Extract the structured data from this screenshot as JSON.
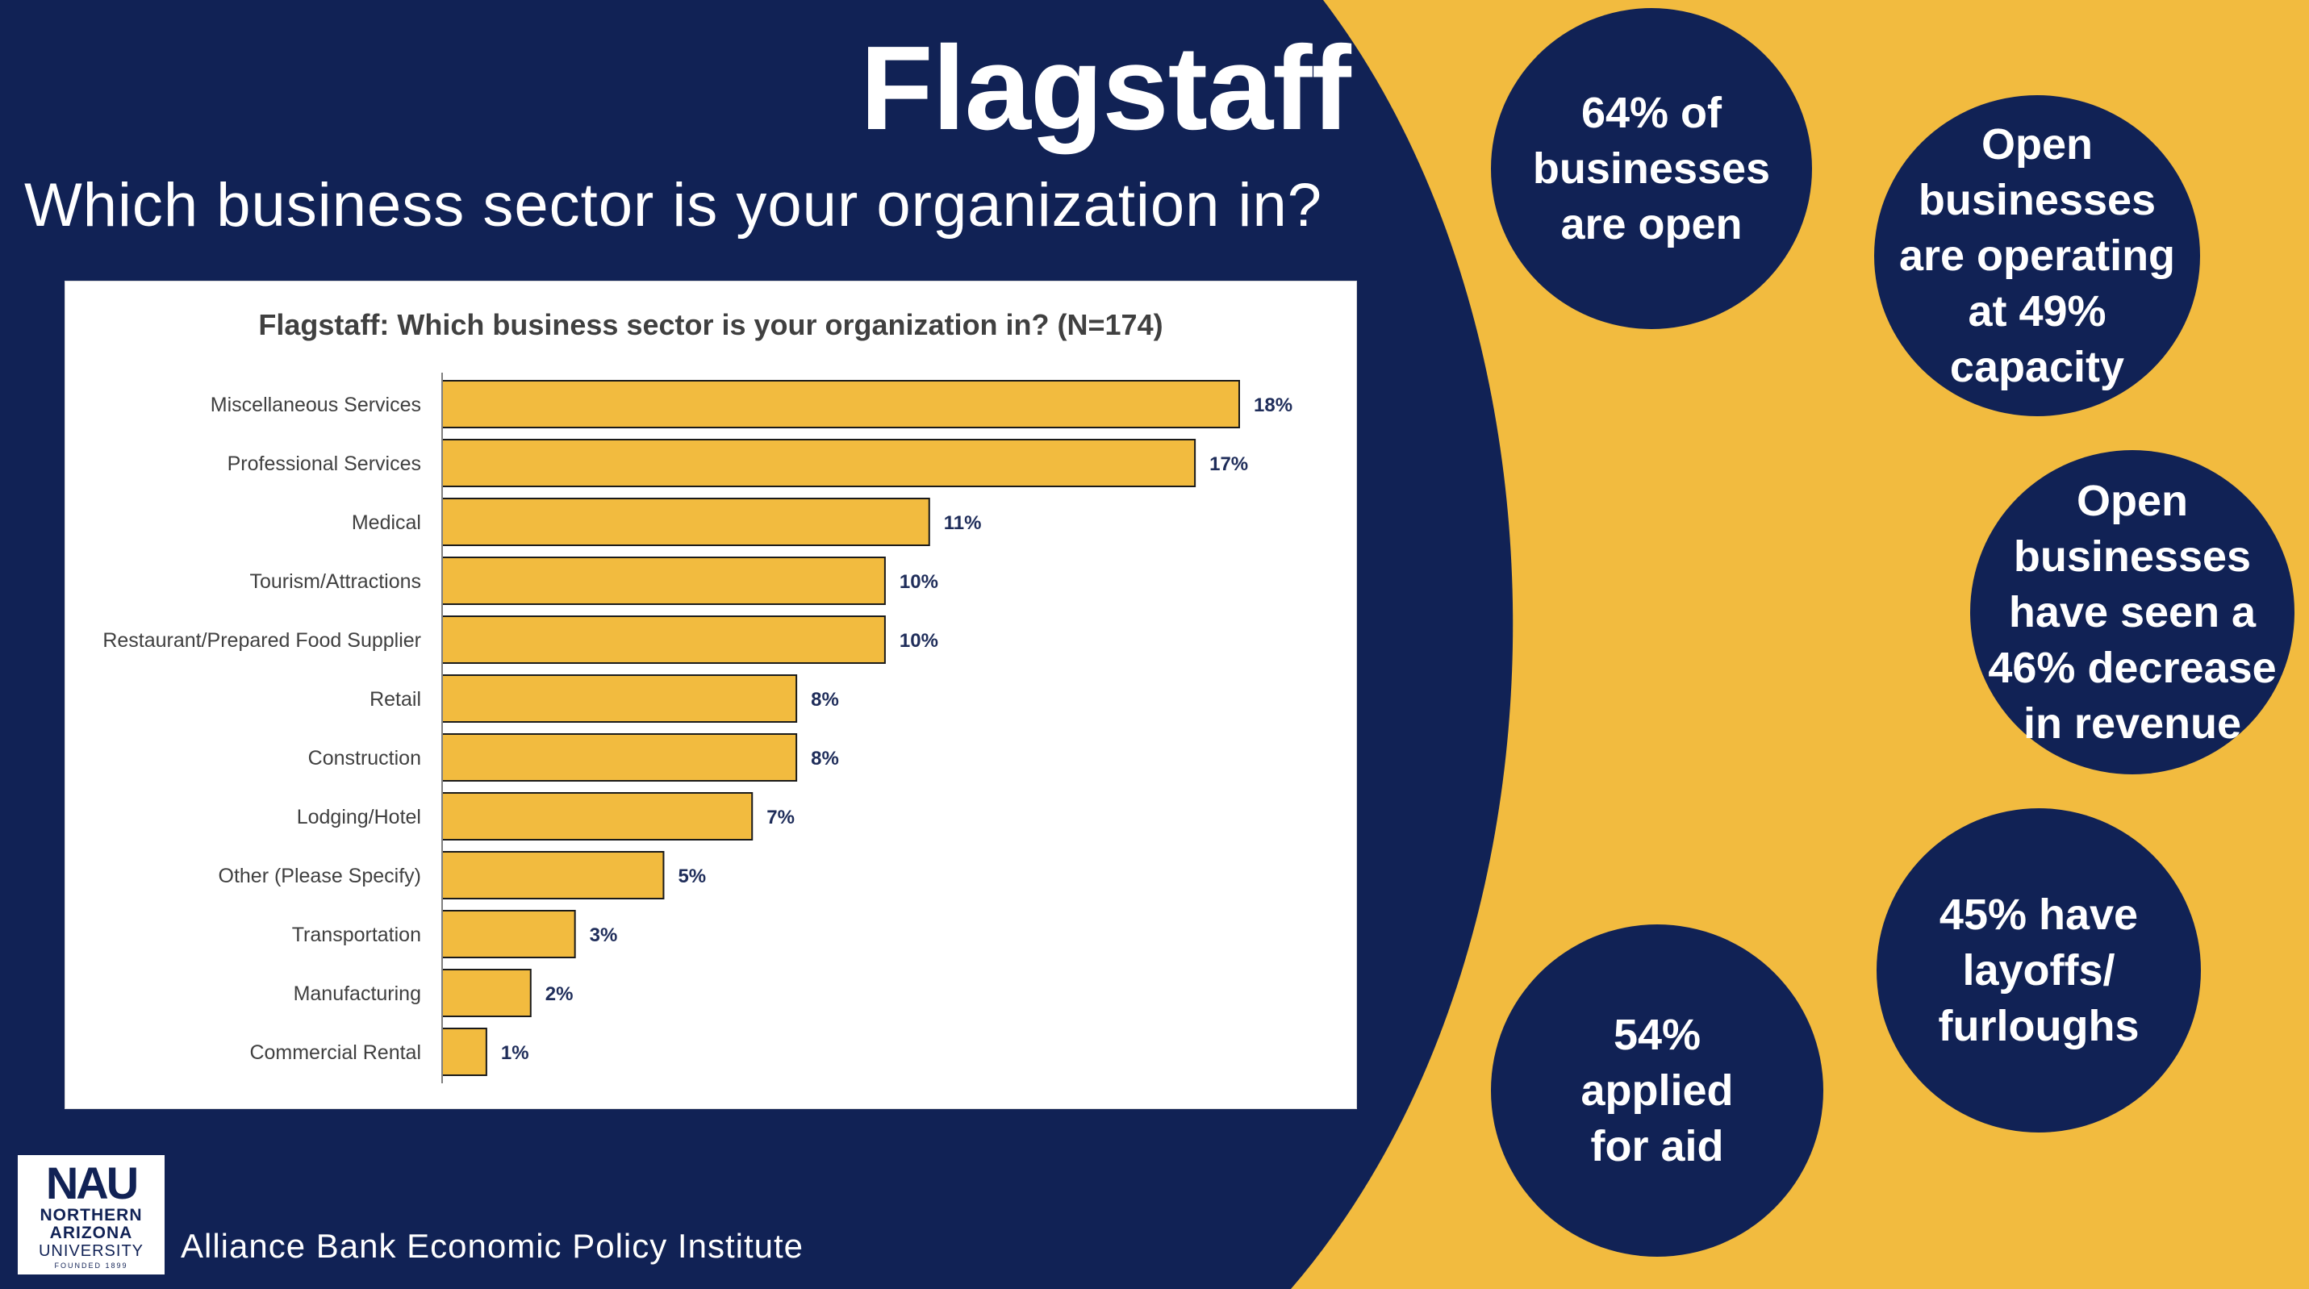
{
  "slide": {
    "title": "Flagstaff",
    "subtitle": "Which business sector is your organization in?",
    "footer": "Alliance Bank Economic Policy Institute",
    "colors": {
      "navy": "#112255",
      "gold": "#f2bb3f",
      "bar": "#f2bb3f",
      "white": "#ffffff"
    }
  },
  "logo": {
    "wordmark": "NAU",
    "line1": "NORTHERN",
    "line2": "ARIZONA",
    "line3": "UNIVERSITY",
    "founded": "FOUNDED 1899"
  },
  "stats": [
    {
      "text": "64% of businesses are open"
    },
    {
      "text": "Open businesses are operating at 49% capacity"
    },
    {
      "text": "Open businesses have seen a 46% decrease in revenue"
    },
    {
      "text": "45% have layoffs/ furloughs"
    },
    {
      "text": "54% applied for aid"
    }
  ],
  "chart_data": {
    "type": "bar",
    "orientation": "horizontal",
    "title": "Flagstaff: Which business sector is your organization in? (N=174)",
    "categories": [
      "Miscellaneous Services",
      "Professional Services",
      "Medical",
      "Tourism/Attractions",
      "Restaurant/Prepared Food Supplier",
      "Retail",
      "Construction",
      "Lodging/Hotel",
      "Other (Please Specify)",
      "Transportation",
      "Manufacturing",
      "Commercial Rental"
    ],
    "values": [
      18,
      17,
      11,
      10,
      10,
      8,
      8,
      7,
      5,
      3,
      2,
      1
    ],
    "value_labels": [
      "18%",
      "17%",
      "11%",
      "10%",
      "10%",
      "8%",
      "8%",
      "7%",
      "5%",
      "3%",
      "2%",
      "1%"
    ],
    "unit": "%",
    "xlim": [
      0,
      18
    ],
    "grid": false,
    "legend": "none"
  }
}
